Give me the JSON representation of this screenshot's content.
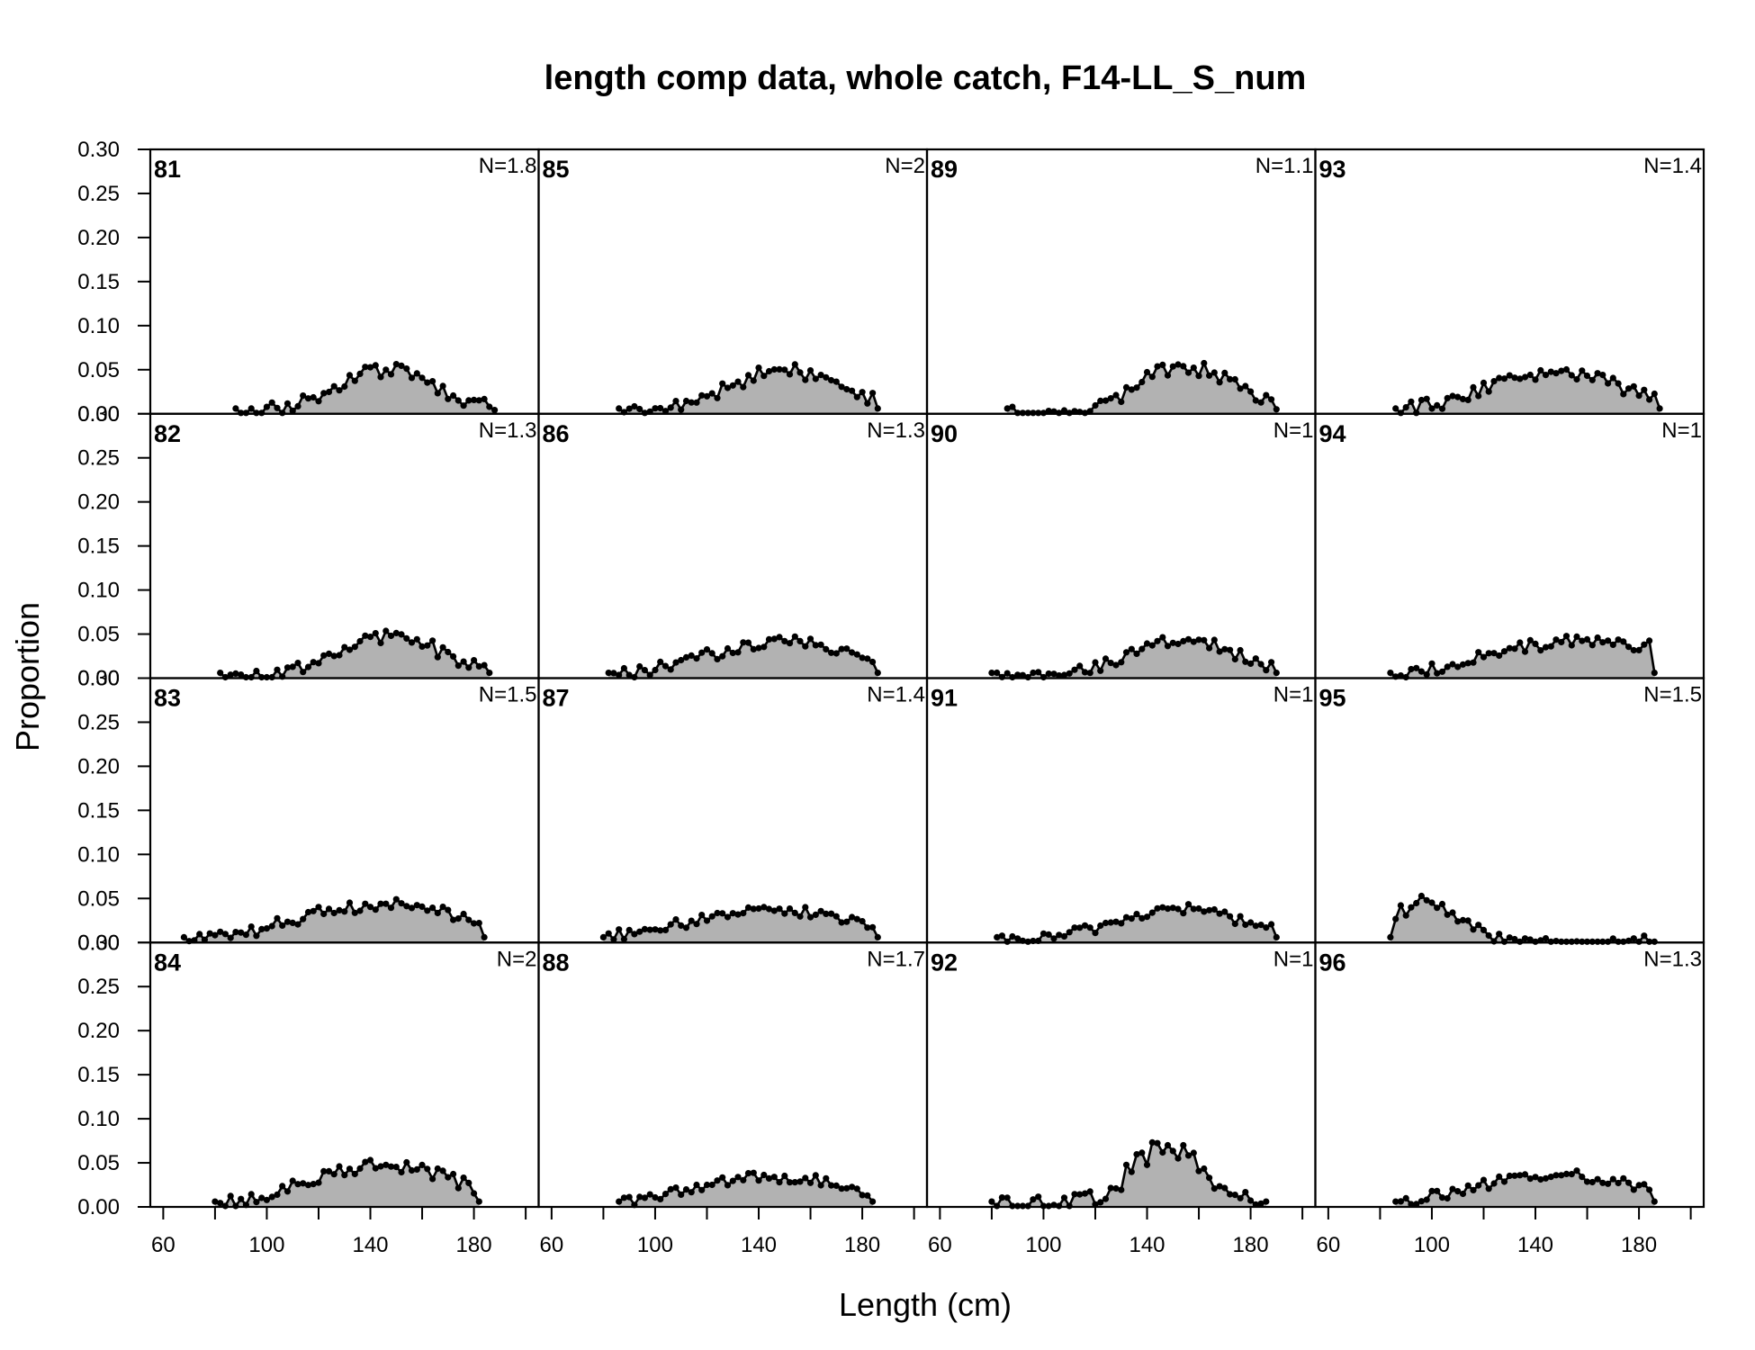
{
  "chart_data": {
    "type": "area",
    "title": "length comp data, whole catch, F14-LL_S_num",
    "xlabel": "Length (cm)",
    "ylabel": "Proportion",
    "xlim": [
      55,
      205
    ],
    "ylim": [
      0,
      0.3
    ],
    "x_ticks": [
      "60",
      "100",
      "140",
      "180"
    ],
    "y_ticks": [
      "0.00",
      "0.05",
      "0.10",
      "0.15",
      "0.20",
      "0.25",
      "0.30"
    ],
    "panels": [
      {
        "year": "81",
        "n": "N=1.8",
        "peak_x": 146,
        "peak_y": 0.05,
        "min_x": 88,
        "max_x": 188,
        "width": 20
      },
      {
        "year": "82",
        "n": "N=1.3",
        "peak_x": 148,
        "peak_y": 0.048,
        "min_x": 82,
        "max_x": 186,
        "width": 20
      },
      {
        "year": "83",
        "n": "N=1.5",
        "peak_x": 146,
        "peak_y": 0.044,
        "min_x": 68,
        "max_x": 184,
        "width": 34
      },
      {
        "year": "84",
        "n": "N=2",
        "peak_x": 145,
        "peak_y": 0.046,
        "min_x": 80,
        "max_x": 182,
        "width": 30
      },
      {
        "year": "85",
        "n": "N=2",
        "peak_x": 150,
        "peak_y": 0.05,
        "min_x": 86,
        "max_x": 186,
        "width": 22
      },
      {
        "year": "86",
        "n": "N=1.3",
        "peak_x": 150,
        "peak_y": 0.042,
        "min_x": 82,
        "max_x": 186,
        "width": 30
      },
      {
        "year": "87",
        "n": "N=1.4",
        "peak_x": 146,
        "peak_y": 0.036,
        "min_x": 80,
        "max_x": 186,
        "width": 36
      },
      {
        "year": "88",
        "n": "N=1.7",
        "peak_x": 146,
        "peak_y": 0.034,
        "min_x": 86,
        "max_x": 184,
        "width": 32
      },
      {
        "year": "89",
        "n": "N=1.1",
        "peak_x": 155,
        "peak_y": 0.054,
        "min_x": 86,
        "max_x": 190,
        "width": 18
      },
      {
        "year": "90",
        "n": "N=1",
        "peak_x": 154,
        "peak_y": 0.042,
        "min_x": 80,
        "max_x": 190,
        "width": 22
      },
      {
        "year": "91",
        "n": "N=1",
        "peak_x": 153,
        "peak_y": 0.038,
        "min_x": 82,
        "max_x": 190,
        "width": 26
      },
      {
        "year": "92",
        "n": "N=1",
        "peak_x": 148,
        "peak_y": 0.07,
        "min_x": 80,
        "max_x": 186,
        "width": 14
      },
      {
        "year": "93",
        "n": "N=1.4",
        "peak_x": 148,
        "peak_y": 0.046,
        "min_x": 86,
        "max_x": 188,
        "width": 28
      },
      {
        "year": "94",
        "n": "N=1",
        "peak_x": 160,
        "peak_y": 0.044,
        "min_x": 84,
        "max_x": 186,
        "width": 36
      },
      {
        "year": "95",
        "n": "N=1.5",
        "peak_x": 98,
        "peak_y": 0.048,
        "min_x": 84,
        "max_x": 186,
        "width": 12
      },
      {
        "year": "96",
        "n": "N=1.3",
        "peak_x": 150,
        "peak_y": 0.036,
        "min_x": 86,
        "max_x": 186,
        "width": 34
      }
    ]
  }
}
